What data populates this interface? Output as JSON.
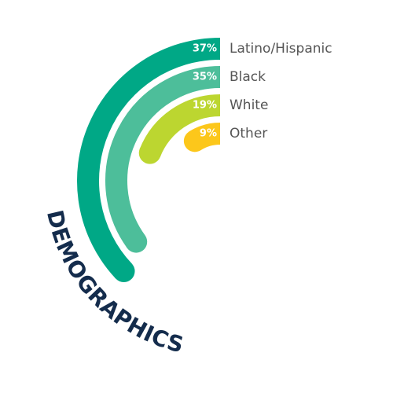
{
  "chart_data": {
    "type": "radial-bar",
    "title": "DEMOGRAPHICS",
    "categories": [
      "Latino/Hispanic",
      "Black",
      "White",
      "Other"
    ],
    "values": [
      37,
      35,
      19,
      9
    ],
    "value_labels": [
      "37%",
      "35%",
      "19%",
      "9%"
    ],
    "colors": [
      "#00a886",
      "#4dbe9a",
      "#bcd630",
      "#fcc71b"
    ]
  }
}
